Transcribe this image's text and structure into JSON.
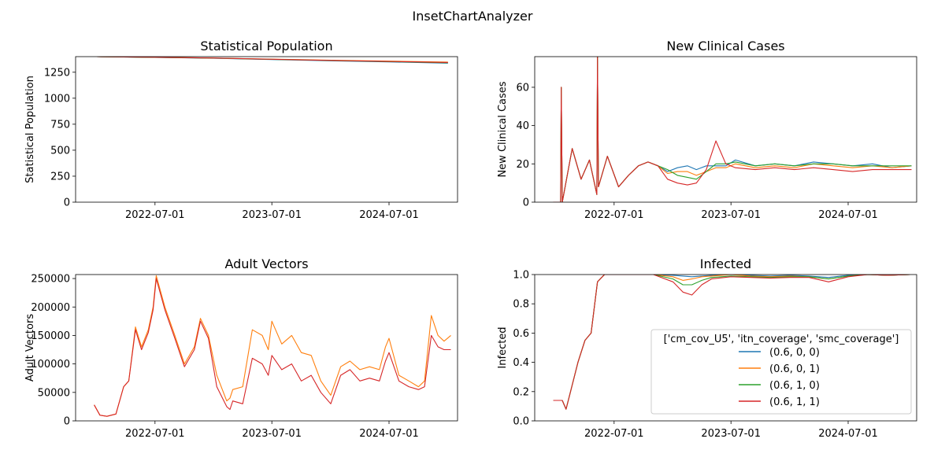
{
  "figure_title": "InsetChartAnalyzer",
  "colors": {
    "(0.6, 0, 0)": "#1f77b4",
    "(0.6, 0, 1)": "#ff7f0e",
    "(0.6, 1, 0)": "#2ca02c",
    "(0.6, 1, 1)": "#d62728"
  },
  "legend": {
    "title": "['cm_cov_U5', 'itn_coverage', 'smc_coverage']",
    "placement": "lower-right of Infected panel",
    "entries": [
      "(0.6, 0, 0)",
      "(0.6, 0, 1)",
      "(0.6, 1, 0)",
      "(0.6, 1, 1)"
    ]
  },
  "chart_data": [
    {
      "type": "line",
      "title": "Statistical Population",
      "ylabel": "Statistical Population",
      "x_range": [
        "2021-10-26",
        "2025-01-31"
      ],
      "ylim": [
        0,
        1400
      ],
      "yticks": [
        0,
        250,
        500,
        750,
        1000,
        1250
      ],
      "ytick_labels": [
        "0",
        "250",
        "500",
        "750",
        "1000",
        "1250"
      ],
      "xticks": [
        "2022-07-01",
        "2023-07-01",
        "2024-07-01"
      ],
      "series": [
        {
          "name": "(0.6, 0, 0)",
          "x": [
            "2022-01-01",
            "2022-07-01",
            "2023-01-01",
            "2023-07-01",
            "2024-01-01",
            "2024-07-01",
            "2025-01-01"
          ],
          "y": [
            1400,
            1393,
            1384,
            1372,
            1360,
            1349,
            1337
          ]
        },
        {
          "name": "(0.6, 0, 1)",
          "x": [
            "2022-01-01",
            "2022-07-01",
            "2023-01-01",
            "2023-07-01",
            "2024-01-01",
            "2024-07-01",
            "2025-01-01"
          ],
          "y": [
            1400,
            1394,
            1386,
            1376,
            1366,
            1357,
            1348
          ]
        },
        {
          "name": "(0.6, 1, 0)",
          "x": [
            "2022-01-01",
            "2022-07-01",
            "2023-01-01",
            "2023-07-01",
            "2024-01-01",
            "2024-07-01",
            "2025-01-01"
          ],
          "y": [
            1400,
            1393,
            1385,
            1374,
            1363,
            1352,
            1341
          ]
        },
        {
          "name": "(0.6, 1, 1)",
          "x": [
            "2022-01-01",
            "2022-07-01",
            "2023-01-01",
            "2023-07-01",
            "2024-01-01",
            "2024-07-01",
            "2025-01-01"
          ],
          "y": [
            1400,
            1394,
            1386,
            1375,
            1364,
            1354,
            1344
          ]
        }
      ]
    },
    {
      "type": "line",
      "title": "New Clinical Cases",
      "ylabel": "New Clinical Cases",
      "x_range": [
        "2021-10-26",
        "2025-01-31"
      ],
      "ylim": [
        0,
        76
      ],
      "yticks": [
        0,
        20,
        40,
        60
      ],
      "ytick_labels": [
        "0",
        "20",
        "40",
        "60"
      ],
      "xticks": [
        "2022-07-01",
        "2023-07-01",
        "2024-07-01"
      ],
      "series": [
        {
          "name": "(0.6, 0, 0)",
          "x": [
            "2021-12-23",
            "2022-01-15",
            "2022-01-17",
            "2022-01-20",
            "2022-02-20",
            "2022-03-20",
            "2022-04-15",
            "2022-05-08",
            "2022-05-10",
            "2022-05-13",
            "2022-06-10",
            "2022-07-15",
            "2022-08-15",
            "2022-09-15",
            "2022-10-15",
            "2022-11-15",
            "2022-12-15",
            "2023-01-15",
            "2023-02-15",
            "2023-03-15",
            "2023-04-15",
            "2023-05-15",
            "2023-06-15",
            "2023-07-15",
            "2023-09-15",
            "2023-11-15",
            "2024-01-15",
            "2024-03-15",
            "2024-05-15",
            "2024-07-15",
            "2024-09-15",
            "2024-11-15",
            "2025-01-15"
          ],
          "y": [
            0,
            0,
            60,
            0,
            28,
            12,
            22,
            4,
            76,
            8,
            24,
            8,
            14,
            19,
            21,
            19,
            16,
            18,
            19,
            17,
            19,
            19,
            19,
            22,
            19,
            20,
            19,
            21,
            20,
            19,
            20,
            18,
            19
          ]
        },
        {
          "name": "(0.6, 0, 1)",
          "x": [
            "2021-12-23",
            "2022-01-15",
            "2022-01-17",
            "2022-01-20",
            "2022-02-20",
            "2022-03-20",
            "2022-04-15",
            "2022-05-08",
            "2022-05-10",
            "2022-05-13",
            "2022-06-10",
            "2022-07-15",
            "2022-08-15",
            "2022-09-15",
            "2022-10-15",
            "2022-11-15",
            "2022-12-15",
            "2023-01-15",
            "2023-02-15",
            "2023-03-15",
            "2023-04-15",
            "2023-05-15",
            "2023-06-15",
            "2023-07-15",
            "2023-09-15",
            "2023-11-15",
            "2024-01-15",
            "2024-03-15",
            "2024-05-15",
            "2024-07-15",
            "2024-09-15",
            "2024-11-15",
            "2025-01-15"
          ],
          "y": [
            0,
            0,
            60,
            0,
            28,
            12,
            22,
            4,
            76,
            8,
            24,
            8,
            14,
            19,
            21,
            19,
            15,
            16,
            16,
            14,
            16,
            18,
            18,
            20,
            18,
            19,
            18,
            20,
            19,
            18,
            19,
            18,
            19
          ]
        },
        {
          "name": "(0.6, 1, 0)",
          "x": [
            "2021-12-23",
            "2022-01-15",
            "2022-01-17",
            "2022-01-20",
            "2022-02-20",
            "2022-03-20",
            "2022-04-15",
            "2022-05-08",
            "2022-05-10",
            "2022-05-13",
            "2022-06-10",
            "2022-07-15",
            "2022-08-15",
            "2022-09-15",
            "2022-10-15",
            "2022-11-15",
            "2022-12-15",
            "2023-01-15",
            "2023-02-15",
            "2023-03-15",
            "2023-04-15",
            "2023-05-15",
            "2023-06-15",
            "2023-07-15",
            "2023-09-15",
            "2023-11-15",
            "2024-01-15",
            "2024-03-15",
            "2024-05-15",
            "2024-07-15",
            "2024-09-15",
            "2024-11-15",
            "2025-01-15"
          ],
          "y": [
            0,
            0,
            60,
            0,
            28,
            12,
            22,
            4,
            76,
            8,
            24,
            8,
            14,
            19,
            21,
            19,
            17,
            14,
            13,
            12,
            16,
            20,
            20,
            21,
            19,
            20,
            19,
            20,
            20,
            19,
            19,
            19,
            19
          ]
        },
        {
          "name": "(0.6, 1, 1)",
          "x": [
            "2021-12-23",
            "2022-01-15",
            "2022-01-17",
            "2022-01-20",
            "2022-02-20",
            "2022-03-20",
            "2022-04-15",
            "2022-05-08",
            "2022-05-10",
            "2022-05-13",
            "2022-06-10",
            "2022-07-15",
            "2022-08-15",
            "2022-09-15",
            "2022-10-15",
            "2022-11-15",
            "2022-12-15",
            "2023-01-15",
            "2023-02-15",
            "2023-03-15",
            "2023-04-15",
            "2023-05-15",
            "2023-06-15",
            "2023-07-15",
            "2023-09-15",
            "2023-11-15",
            "2024-01-15",
            "2024-03-15",
            "2024-05-15",
            "2024-07-15",
            "2024-09-15",
            "2024-11-15",
            "2025-01-15"
          ],
          "y": [
            0,
            0,
            60,
            0,
            28,
            12,
            22,
            4,
            76,
            8,
            24,
            8,
            14,
            19,
            21,
            19,
            12,
            10,
            9,
            10,
            17,
            32,
            20,
            18,
            17,
            18,
            17,
            18,
            17,
            16,
            17,
            17,
            17
          ]
        }
      ]
    },
    {
      "type": "line",
      "title": "Adult Vectors",
      "ylabel": "Adult Vectors",
      "x_range": [
        "2021-10-26",
        "2025-01-31"
      ],
      "ylim": [
        0,
        257000
      ],
      "yticks": [
        0,
        50000,
        100000,
        150000,
        200000,
        250000
      ],
      "ytick_labels": [
        "0",
        "50000",
        "100000",
        "150000",
        "200000",
        "250000"
      ],
      "xticks": [
        "2022-07-01",
        "2023-07-01",
        "2024-07-01"
      ],
      "series": [
        {
          "name": "(0.6, 0, 1)",
          "x": [
            "2021-12-23",
            "2022-01-10",
            "2022-02-01",
            "2022-03-01",
            "2022-03-25",
            "2022-04-10",
            "2022-05-01",
            "2022-05-20",
            "2022-06-10",
            "2022-06-25",
            "2022-07-05",
            "2022-08-01",
            "2022-09-01",
            "2022-10-01",
            "2022-11-01",
            "2022-11-20",
            "2022-12-15",
            "2023-01-10",
            "2023-02-10",
            "2023-02-20",
            "2023-03-01",
            "2023-04-01",
            "2023-05-01",
            "2023-06-01",
            "2023-06-20",
            "2023-07-01",
            "2023-08-01",
            "2023-09-01",
            "2023-10-01",
            "2023-11-01",
            "2023-12-01",
            "2024-01-01",
            "2024-02-01",
            "2024-03-01",
            "2024-04-01",
            "2024-05-01",
            "2024-06-01",
            "2024-06-20",
            "2024-07-01",
            "2024-08-01",
            "2024-09-01",
            "2024-10-01",
            "2024-10-20",
            "2024-11-10",
            "2024-12-01",
            "2024-12-20",
            "2025-01-10"
          ],
          "y": [
            28000,
            10000,
            8000,
            12000,
            60000,
            70000,
            165000,
            130000,
            160000,
            200000,
            255000,
            200000,
            150000,
            100000,
            130000,
            180000,
            150000,
            80000,
            35000,
            40000,
            55000,
            60000,
            160000,
            150000,
            125000,
            175000,
            135000,
            150000,
            120000,
            115000,
            70000,
            45000,
            95000,
            105000,
            90000,
            95000,
            90000,
            130000,
            145000,
            80000,
            70000,
            60000,
            70000,
            185000,
            150000,
            140000,
            150000
          ]
        },
        {
          "name": "(0.6, 1, 1)",
          "x": [
            "2021-12-23",
            "2022-01-10",
            "2022-02-01",
            "2022-03-01",
            "2022-03-25",
            "2022-04-10",
            "2022-05-01",
            "2022-05-20",
            "2022-06-10",
            "2022-06-25",
            "2022-07-05",
            "2022-08-01",
            "2022-09-01",
            "2022-10-01",
            "2022-11-01",
            "2022-11-20",
            "2022-12-15",
            "2023-01-10",
            "2023-02-10",
            "2023-02-20",
            "2023-03-01",
            "2023-04-01",
            "2023-05-01",
            "2023-06-01",
            "2023-06-20",
            "2023-07-01",
            "2023-08-01",
            "2023-09-01",
            "2023-10-01",
            "2023-11-01",
            "2023-12-01",
            "2024-01-01",
            "2024-02-01",
            "2024-03-01",
            "2024-04-01",
            "2024-05-01",
            "2024-06-01",
            "2024-06-20",
            "2024-07-01",
            "2024-08-01",
            "2024-09-01",
            "2024-10-01",
            "2024-10-20",
            "2024-11-10",
            "2024-12-01",
            "2024-12-20",
            "2025-01-10"
          ],
          "y": [
            28000,
            10000,
            8000,
            12000,
            60000,
            70000,
            160000,
            125000,
            155000,
            195000,
            250000,
            195000,
            145000,
            95000,
            125000,
            175000,
            145000,
            60000,
            25000,
            20000,
            35000,
            30000,
            110000,
            100000,
            80000,
            115000,
            90000,
            100000,
            70000,
            80000,
            50000,
            30000,
            80000,
            90000,
            70000,
            75000,
            70000,
            105000,
            120000,
            70000,
            60000,
            55000,
            60000,
            150000,
            130000,
            125000,
            125000
          ]
        }
      ]
    },
    {
      "type": "line",
      "title": "Infected",
      "ylabel": "Infected",
      "x_range": [
        "2021-10-26",
        "2025-01-31"
      ],
      "ylim": [
        0,
        1.0
      ],
      "yticks": [
        0.0,
        0.2,
        0.4,
        0.6,
        0.8,
        1.0
      ],
      "ytick_labels": [
        "0.0",
        "0.2",
        "0.4",
        "0.6",
        "0.8",
        "1.0"
      ],
      "xticks": [
        "2022-07-01",
        "2023-07-01",
        "2024-07-01"
      ],
      "series": [
        {
          "name": "(0.6, 0, 0)",
          "x": [
            "2021-12-23",
            "2022-01-20",
            "2022-02-01",
            "2022-02-15",
            "2022-03-10",
            "2022-04-01",
            "2022-04-20",
            "2022-05-10",
            "2022-06-01",
            "2022-07-01",
            "2022-09-01",
            "2022-11-01",
            "2023-01-01",
            "2023-02-01",
            "2023-03-01",
            "2023-04-01",
            "2023-05-01",
            "2023-07-01",
            "2023-09-01",
            "2023-11-01",
            "2024-01-01",
            "2024-03-01",
            "2024-05-01",
            "2024-07-01",
            "2024-09-01",
            "2024-11-01",
            "2025-01-10"
          ],
          "y": [
            0.14,
            0.14,
            0.08,
            0.2,
            0.4,
            0.55,
            0.6,
            0.95,
            1.0,
            1.0,
            1.0,
            1.0,
            0.995,
            0.99,
            0.985,
            0.99,
            0.995,
            1.0,
            0.995,
            0.99,
            0.995,
            0.99,
            0.98,
            0.995,
            1.0,
            0.995,
            1.0
          ]
        },
        {
          "name": "(0.6, 0, 1)",
          "x": [
            "2021-12-23",
            "2022-01-20",
            "2022-02-01",
            "2022-02-15",
            "2022-03-10",
            "2022-04-01",
            "2022-04-20",
            "2022-05-10",
            "2022-06-01",
            "2022-07-01",
            "2022-09-01",
            "2022-11-01",
            "2023-01-01",
            "2023-02-01",
            "2023-03-01",
            "2023-04-01",
            "2023-05-01",
            "2023-07-01",
            "2023-09-01",
            "2023-11-01",
            "2024-01-01",
            "2024-03-01",
            "2024-05-01",
            "2024-07-01",
            "2024-09-01",
            "2024-11-01",
            "2025-01-10"
          ],
          "y": [
            0.14,
            0.14,
            0.08,
            0.2,
            0.4,
            0.55,
            0.6,
            0.95,
            1.0,
            1.0,
            1.0,
            1.0,
            0.985,
            0.96,
            0.97,
            0.985,
            0.99,
            1.0,
            0.99,
            0.985,
            0.99,
            0.985,
            0.97,
            0.99,
            1.0,
            0.995,
            1.0
          ]
        },
        {
          "name": "(0.6, 1, 0)",
          "x": [
            "2021-12-23",
            "2022-01-20",
            "2022-02-01",
            "2022-02-15",
            "2022-03-10",
            "2022-04-01",
            "2022-04-20",
            "2022-05-10",
            "2022-06-01",
            "2022-07-01",
            "2022-09-01",
            "2022-11-01",
            "2023-01-01",
            "2023-02-01",
            "2023-03-01",
            "2023-04-01",
            "2023-05-01",
            "2023-07-01",
            "2023-09-01",
            "2023-11-01",
            "2024-01-01",
            "2024-03-01",
            "2024-05-01",
            "2024-07-01",
            "2024-09-01",
            "2024-11-01",
            "2025-01-10"
          ],
          "y": [
            0.14,
            0.14,
            0.08,
            0.2,
            0.4,
            0.55,
            0.6,
            0.95,
            1.0,
            1.0,
            1.0,
            1.0,
            0.97,
            0.93,
            0.93,
            0.96,
            0.98,
            0.99,
            0.985,
            0.98,
            0.985,
            0.985,
            0.97,
            0.99,
            1.0,
            0.995,
            1.0
          ]
        },
        {
          "name": "(0.6, 1, 1)",
          "x": [
            "2021-12-23",
            "2022-01-20",
            "2022-02-01",
            "2022-02-15",
            "2022-03-10",
            "2022-04-01",
            "2022-04-20",
            "2022-05-10",
            "2022-06-01",
            "2022-07-01",
            "2022-09-01",
            "2022-11-01",
            "2023-01-01",
            "2023-02-01",
            "2023-03-01",
            "2023-04-01",
            "2023-05-01",
            "2023-07-01",
            "2023-09-01",
            "2023-11-01",
            "2024-01-01",
            "2024-03-01",
            "2024-05-01",
            "2024-07-01",
            "2024-09-01",
            "2024-11-01",
            "2025-01-10"
          ],
          "y": [
            0.14,
            0.14,
            0.08,
            0.2,
            0.4,
            0.55,
            0.6,
            0.95,
            1.0,
            1.0,
            1.0,
            1.0,
            0.95,
            0.88,
            0.86,
            0.93,
            0.97,
            0.985,
            0.98,
            0.975,
            0.98,
            0.98,
            0.95,
            0.985,
            1.0,
            0.995,
            1.0
          ]
        }
      ]
    }
  ]
}
